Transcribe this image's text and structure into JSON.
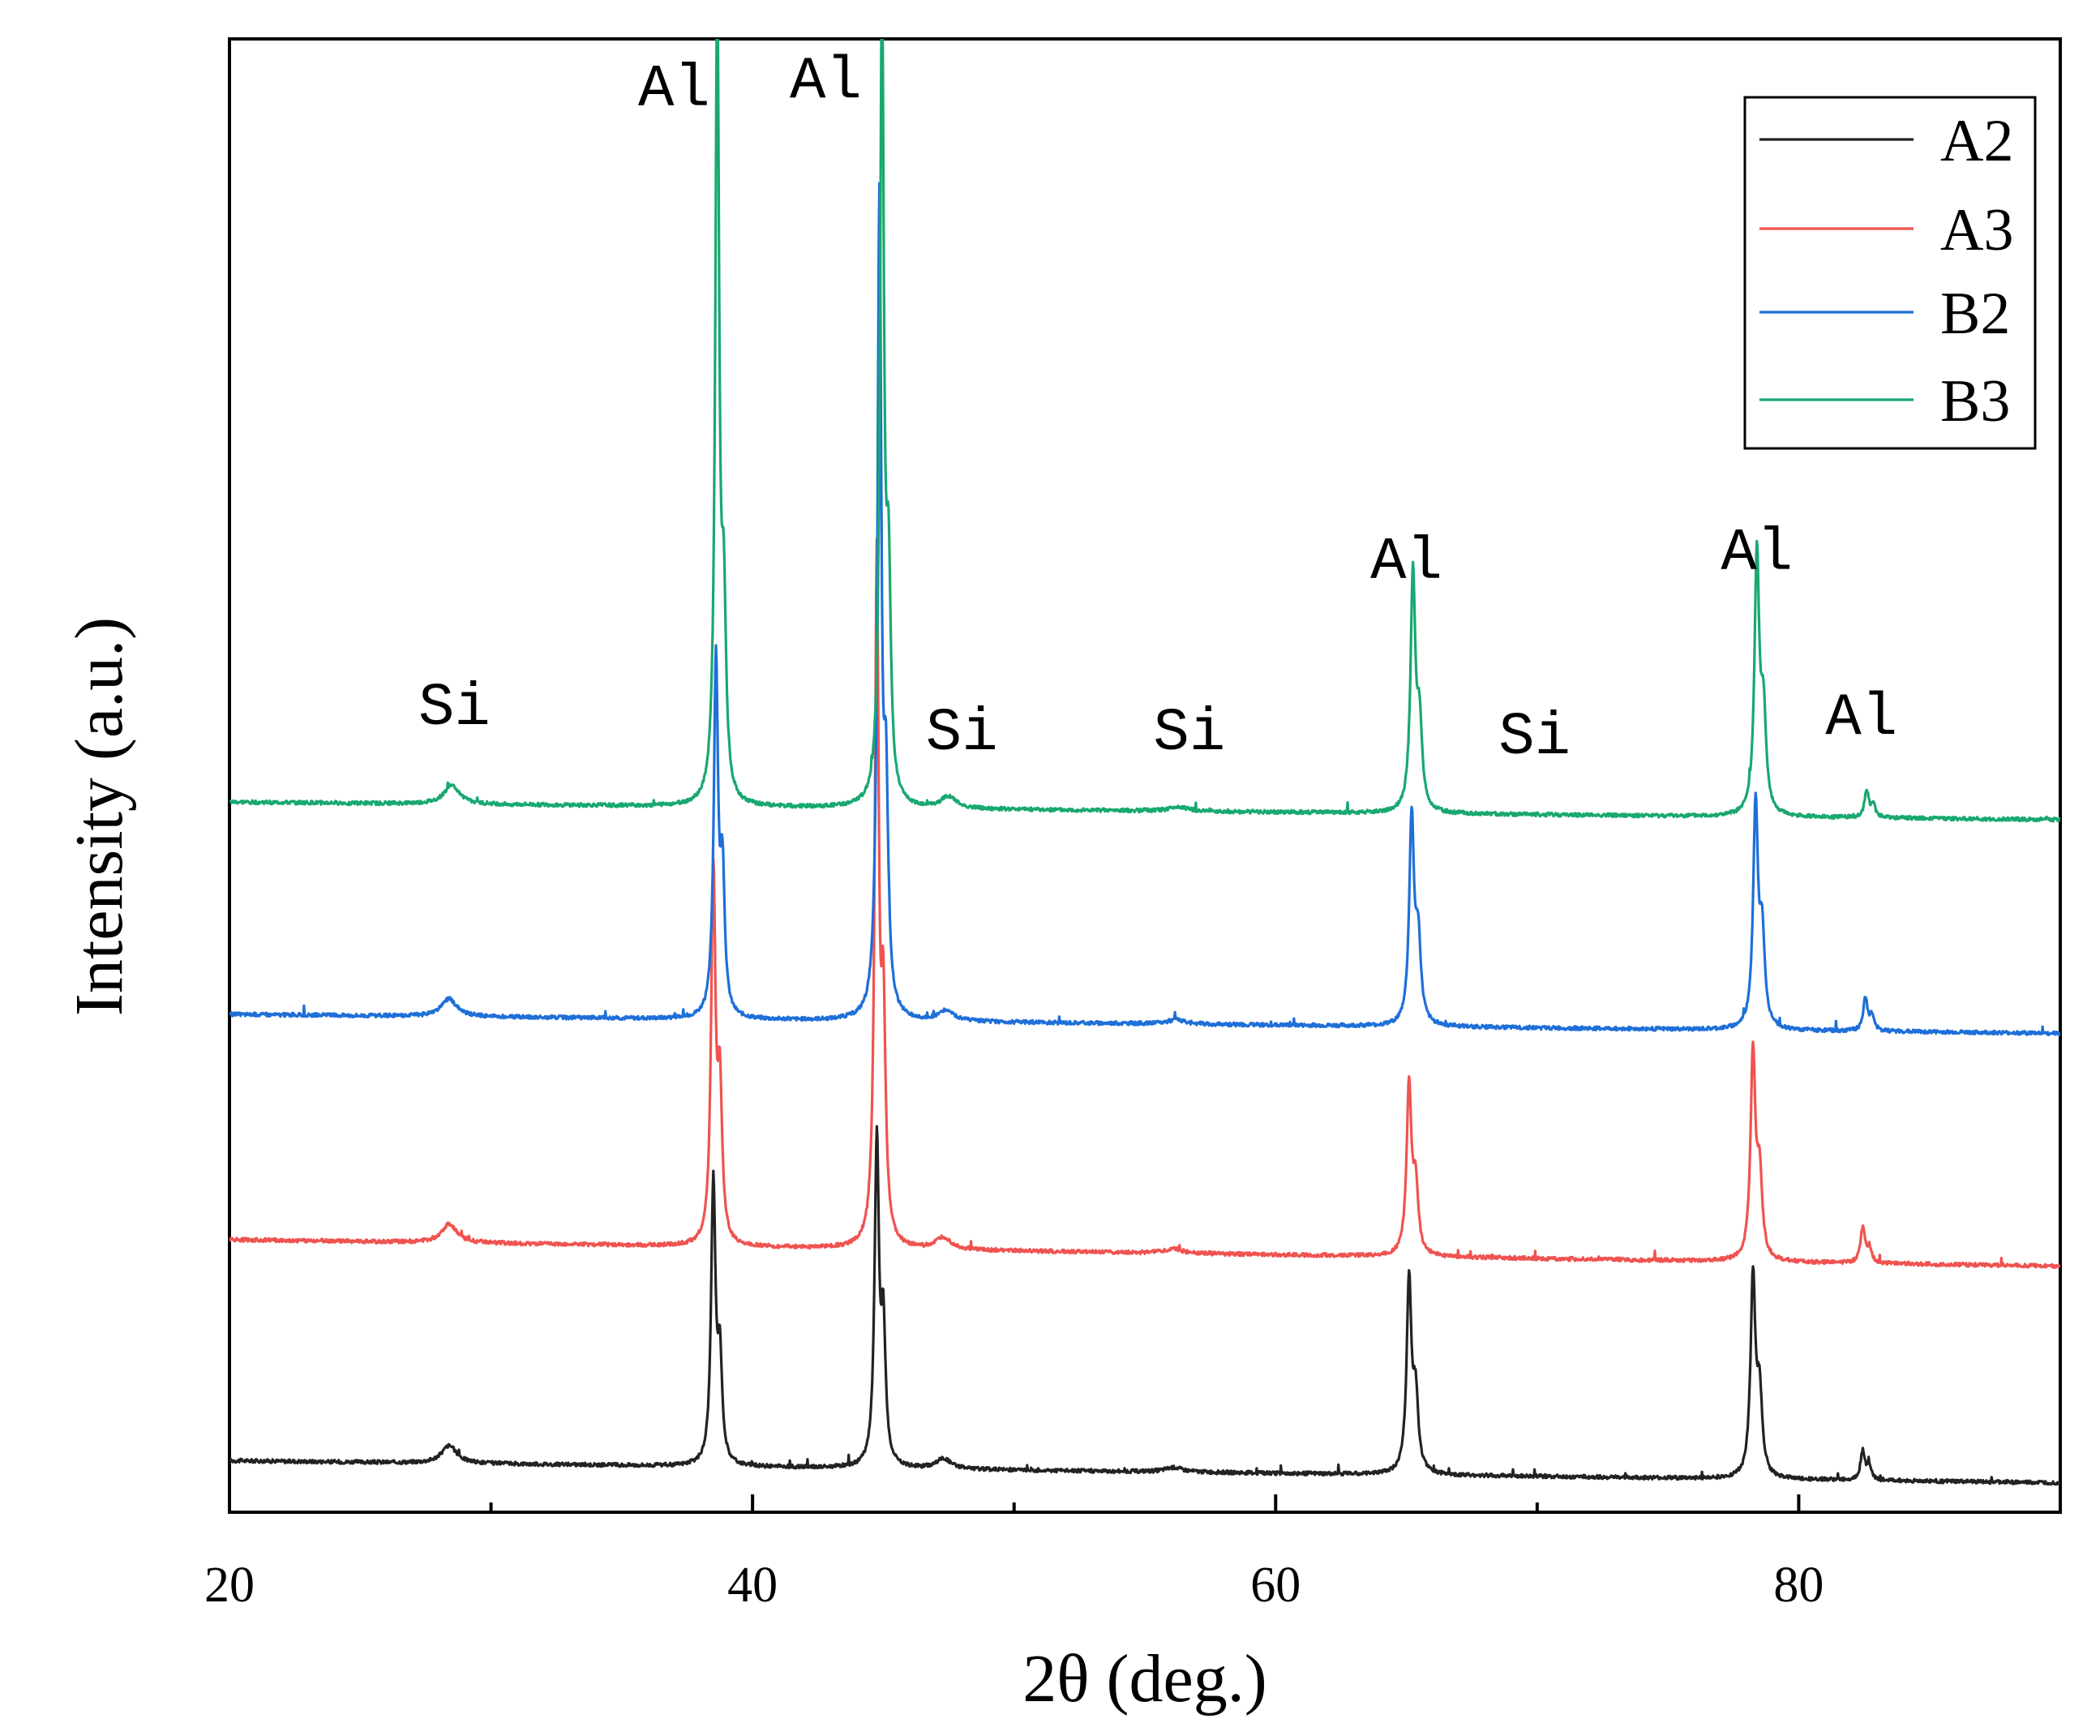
{
  "chart_data": {
    "type": "line",
    "title": "",
    "xlabel": "2θ (deg.)",
    "ylabel": "Intensity (a.u.)",
    "xlim": [
      20,
      90
    ],
    "ylim": [
      0,
      10
    ],
    "x_ticks": [
      20,
      40,
      60,
      80
    ],
    "x_minor_ticks": [
      30,
      50,
      70
    ],
    "grid": false,
    "legend_placement": "top-right",
    "y_ticks_shown": false,
    "series": [
      {
        "name": "A2",
        "color": "#222222",
        "offset": 0.35,
        "drift": -0.15,
        "peaks": [
          {
            "pos": 28.4,
            "amp": 0.12,
            "width": 0.35
          },
          {
            "pos": 38.5,
            "amp": 1.9,
            "width": 0.1
          },
          {
            "pos": 38.75,
            "amp": 0.7,
            "width": 0.1
          },
          {
            "pos": 44.75,
            "amp": 2.2,
            "width": 0.1
          },
          {
            "pos": 45.0,
            "amp": 0.9,
            "width": 0.1
          },
          {
            "pos": 47.3,
            "amp": 0.07,
            "width": 0.35
          },
          {
            "pos": 56.1,
            "amp": 0.03,
            "width": 0.4
          },
          {
            "pos": 65.1,
            "amp": 1.3,
            "width": 0.11
          },
          {
            "pos": 65.35,
            "amp": 0.5,
            "width": 0.12
          },
          {
            "pos": 78.25,
            "amp": 1.35,
            "width": 0.11
          },
          {
            "pos": 78.5,
            "amp": 0.55,
            "width": 0.12
          },
          {
            "pos": 82.45,
            "amp": 0.2,
            "width": 0.1
          },
          {
            "pos": 82.7,
            "amp": 0.09,
            "width": 0.1
          }
        ]
      },
      {
        "name": "A3",
        "color": "#ef5350",
        "offset": 1.85,
        "drift": -0.18,
        "peaks": [
          {
            "pos": 28.4,
            "amp": 0.13,
            "width": 0.35
          },
          {
            "pos": 38.5,
            "amp": 2.5,
            "width": 0.1
          },
          {
            "pos": 38.75,
            "amp": 1.0,
            "width": 0.1
          },
          {
            "pos": 44.75,
            "amp": 4.6,
            "width": 0.09
          },
          {
            "pos": 45.0,
            "amp": 1.5,
            "width": 0.1
          },
          {
            "pos": 47.3,
            "amp": 0.08,
            "width": 0.35
          },
          {
            "pos": 56.1,
            "amp": 0.03,
            "width": 0.4
          },
          {
            "pos": 65.1,
            "amp": 1.15,
            "width": 0.11
          },
          {
            "pos": 65.35,
            "amp": 0.45,
            "width": 0.12
          },
          {
            "pos": 78.25,
            "amp": 1.4,
            "width": 0.11
          },
          {
            "pos": 78.5,
            "amp": 0.55,
            "width": 0.12
          },
          {
            "pos": 82.45,
            "amp": 0.24,
            "width": 0.1
          },
          {
            "pos": 82.7,
            "amp": 0.1,
            "width": 0.1
          }
        ]
      },
      {
        "name": "B2",
        "color": "#1e6fd8",
        "offset": 3.38,
        "drift": -0.13,
        "peaks": [
          {
            "pos": 28.4,
            "amp": 0.12,
            "width": 0.35
          },
          {
            "pos": 38.6,
            "amp": 2.4,
            "width": 0.1
          },
          {
            "pos": 38.85,
            "amp": 0.9,
            "width": 0.1
          },
          {
            "pos": 44.85,
            "amp": 5.5,
            "width": 0.09
          },
          {
            "pos": 45.1,
            "amp": 1.4,
            "width": 0.1
          },
          {
            "pos": 47.4,
            "amp": 0.07,
            "width": 0.35
          },
          {
            "pos": 56.2,
            "amp": 0.03,
            "width": 0.4
          },
          {
            "pos": 65.2,
            "amp": 1.4,
            "width": 0.11
          },
          {
            "pos": 65.45,
            "amp": 0.55,
            "width": 0.12
          },
          {
            "pos": 78.35,
            "amp": 1.5,
            "width": 0.11
          },
          {
            "pos": 78.6,
            "amp": 0.6,
            "width": 0.12
          },
          {
            "pos": 82.55,
            "amp": 0.22,
            "width": 0.1
          },
          {
            "pos": 82.8,
            "amp": 0.1,
            "width": 0.1
          }
        ]
      },
      {
        "name": "B3",
        "color": "#18a870",
        "offset": 4.82,
        "drift": -0.12,
        "peaks": [
          {
            "pos": 28.5,
            "amp": 0.13,
            "width": 0.35
          },
          {
            "pos": 38.65,
            "amp": 5.5,
            "width": 0.09
          },
          {
            "pos": 38.9,
            "amp": 1.2,
            "width": 0.1
          },
          {
            "pos": 44.95,
            "amp": 5.5,
            "width": 0.09
          },
          {
            "pos": 45.2,
            "amp": 1.4,
            "width": 0.1
          },
          {
            "pos": 47.5,
            "amp": 0.08,
            "width": 0.35
          },
          {
            "pos": 56.3,
            "amp": 0.03,
            "width": 0.4
          },
          {
            "pos": 65.25,
            "amp": 1.6,
            "width": 0.11
          },
          {
            "pos": 65.5,
            "amp": 0.55,
            "width": 0.12
          },
          {
            "pos": 78.4,
            "amp": 1.75,
            "width": 0.11
          },
          {
            "pos": 78.65,
            "amp": 0.65,
            "width": 0.12
          },
          {
            "pos": 82.6,
            "amp": 0.18,
            "width": 0.1
          },
          {
            "pos": 82.85,
            "amp": 0.08,
            "width": 0.1
          }
        ]
      }
    ],
    "annotations": [
      {
        "text": "Si",
        "x": 28.6,
        "y": 5.35
      },
      {
        "text": "Al",
        "x": 37.0,
        "y": 9.55
      },
      {
        "text": "Al",
        "x": 42.8,
        "y": 9.6
      },
      {
        "text": "Si",
        "x": 48.0,
        "y": 5.18
      },
      {
        "text": "Si",
        "x": 56.7,
        "y": 5.18
      },
      {
        "text": "Al",
        "x": 65.0,
        "y": 6.34
      },
      {
        "text": "Si",
        "x": 69.9,
        "y": 5.15
      },
      {
        "text": "Al",
        "x": 78.4,
        "y": 6.4
      },
      {
        "text": "Al",
        "x": 82.4,
        "y": 5.28
      }
    ]
  }
}
